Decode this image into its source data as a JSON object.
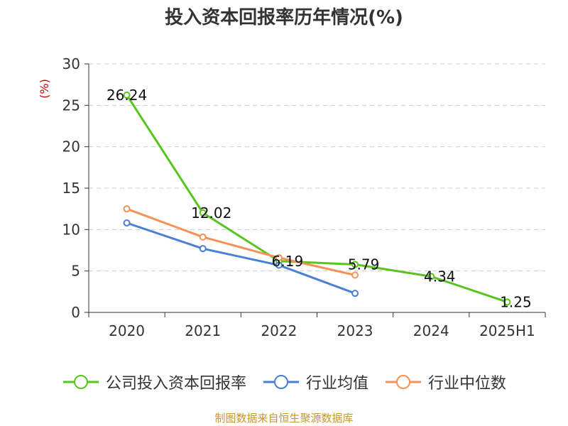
{
  "chart_data": {
    "type": "line",
    "title": "投入资本回报率历年情况(%)",
    "ylabel": "(%)",
    "xlabel": "",
    "categories": [
      "2020",
      "2021",
      "2022",
      "2023",
      "2024",
      "2025H1"
    ],
    "ylim": [
      0,
      30
    ],
    "yticks": [
      0,
      5,
      10,
      15,
      20,
      25,
      30
    ],
    "grid": true,
    "legend_position": "bottom",
    "series": [
      {
        "name": "公司投入资本回报率",
        "color": "#5ac41f",
        "values": [
          26.24,
          12.02,
          6.19,
          5.79,
          4.34,
          1.25
        ],
        "labels": [
          "26.24",
          "12.02",
          "6.19",
          "5.79",
          "4.34",
          "1.25"
        ]
      },
      {
        "name": "行业均值",
        "color": "#4a7fd6",
        "values": [
          10.8,
          7.7,
          5.7,
          2.3,
          null,
          null
        ]
      },
      {
        "name": "行业中位数",
        "color": "#f59258",
        "values": [
          12.5,
          9.1,
          6.6,
          4.5,
          null,
          null
        ]
      }
    ]
  },
  "source": "制图数据来自恒生聚源数据库"
}
